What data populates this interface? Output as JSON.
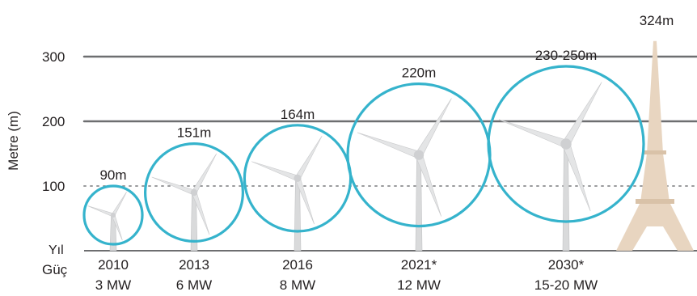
{
  "chart_data": {
    "type": "scatter",
    "ylabel": "Metre (m)",
    "yticks": [
      100,
      200,
      300
    ],
    "ylim": [
      0,
      340
    ],
    "dotted_reference_line": 100,
    "row_labels": {
      "year": "Yıl",
      "power": "Güç"
    },
    "series": [
      {
        "year": "2010",
        "power": "3 MW",
        "diameter_label": "90m",
        "diameter_m": 90,
        "hub_height_m": 55
      },
      {
        "year": "2013",
        "power": "6 MW",
        "diameter_label": "151m",
        "diameter_m": 151,
        "hub_height_m": 90
      },
      {
        "year": "2016",
        "power": "8 MW",
        "diameter_label": "164m",
        "diameter_m": 164,
        "hub_height_m": 112
      },
      {
        "year": "2021*",
        "power": "12 MW",
        "diameter_label": "220m",
        "diameter_m": 220,
        "hub_height_m": 148
      },
      {
        "year": "2030*",
        "power": "15-20 MW",
        "diameter_label": "230-250m",
        "diameter_m": 240,
        "hub_height_m": 165
      }
    ],
    "reference": {
      "label": "324m",
      "height_m": 324
    },
    "colors": {
      "circle": "#35b3cc",
      "grid": "#6d6e70",
      "tower": "#e8d5c0",
      "turbine": "#d9dadb"
    }
  }
}
